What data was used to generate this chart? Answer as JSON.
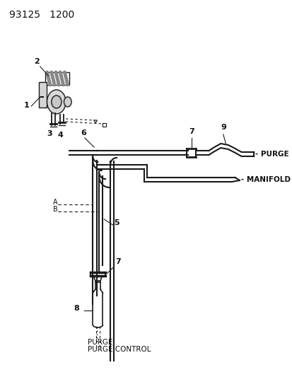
{
  "title": "93125   1200",
  "bg_color": "#ffffff",
  "line_color": "#1a1a1a",
  "text_color": "#111111",
  "fig_width": 4.14,
  "fig_height": 5.33,
  "dpi": 100,
  "labels": {
    "title": "93125   1200",
    "purge": "- PURGE",
    "manifold": "- MANIFOLD",
    "purge_bottom": "PURGE",
    "purge_control": "PURGE CONTROL",
    "num_1": "1",
    "num_2": "2",
    "num_3": "3",
    "num_4": "4",
    "num_5": "5",
    "num_6": "6",
    "num_7_top": "7",
    "num_7_bot": "7",
    "num_8": "8",
    "num_9": "9",
    "letter_A": "A",
    "letter_B": "B"
  }
}
